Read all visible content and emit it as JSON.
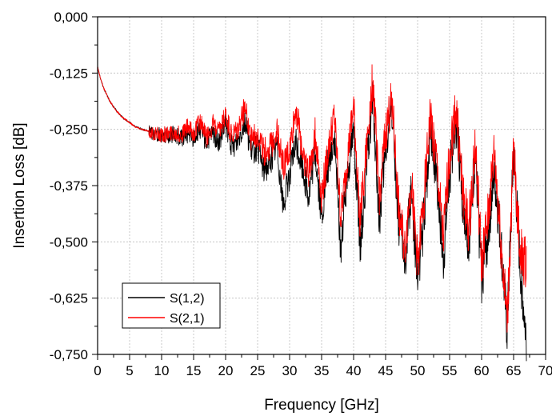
{
  "chart_data": {
    "type": "line",
    "title": "",
    "xlabel": "Frequency [GHz]",
    "ylabel": "Insertion Loss [dB]",
    "xlim": [
      0,
      70
    ],
    "ylim": [
      -0.75,
      0.0
    ],
    "x_ticks": [
      0,
      5,
      10,
      15,
      20,
      25,
      30,
      35,
      40,
      45,
      50,
      55,
      60,
      65,
      70
    ],
    "y_ticks": [
      0.0,
      -0.125,
      -0.25,
      -0.375,
      -0.5,
      -0.625,
      -0.75
    ],
    "x_tick_labels": [
      "0",
      "5",
      "10",
      "15",
      "20",
      "25",
      "30",
      "35",
      "40",
      "45",
      "50",
      "55",
      "60",
      "65",
      "70"
    ],
    "y_tick_labels": [
      "0,000",
      "-0,125",
      "-0,250",
      "-0,375",
      "-0,500",
      "-0,625",
      "-0,750"
    ],
    "grid": true,
    "legend_placement": "bottom-left",
    "series": [
      {
        "name": "S(1,2)",
        "color": "#000000",
        "x": [
          0,
          0.5,
          1,
          1.5,
          2,
          3,
          4,
          5,
          6,
          7,
          8,
          9,
          10,
          11,
          12,
          13,
          14,
          15,
          16,
          17,
          18,
          19,
          20,
          21,
          22,
          23,
          24,
          25,
          26,
          27,
          28,
          29,
          30,
          31,
          32,
          33,
          34,
          35,
          36,
          37,
          38,
          39,
          40,
          41,
          42,
          43,
          44,
          45,
          46,
          47,
          48,
          49,
          50,
          51,
          52,
          53,
          54,
          55,
          56,
          57,
          58,
          59,
          60,
          61,
          62,
          63,
          64,
          65,
          66,
          67
        ],
        "y": [
          -0.11,
          -0.14,
          -0.16,
          -0.175,
          -0.19,
          -0.21,
          -0.225,
          -0.235,
          -0.245,
          -0.25,
          -0.255,
          -0.26,
          -0.262,
          -0.265,
          -0.26,
          -0.27,
          -0.26,
          -0.27,
          -0.25,
          -0.28,
          -0.26,
          -0.28,
          -0.24,
          -0.29,
          -0.27,
          -0.23,
          -0.3,
          -0.29,
          -0.34,
          -0.32,
          -0.28,
          -0.42,
          -0.35,
          -0.28,
          -0.33,
          -0.4,
          -0.3,
          -0.45,
          -0.33,
          -0.27,
          -0.52,
          -0.35,
          -0.25,
          -0.52,
          -0.34,
          -0.18,
          -0.46,
          -0.3,
          -0.2,
          -0.45,
          -0.55,
          -0.38,
          -0.58,
          -0.45,
          -0.25,
          -0.35,
          -0.55,
          -0.35,
          -0.22,
          -0.4,
          -0.5,
          -0.3,
          -0.58,
          -0.48,
          -0.35,
          -0.5,
          -0.7,
          -0.3,
          -0.55,
          -0.72
        ]
      },
      {
        "name": "S(2,1)",
        "color": "#ff0000",
        "x": [
          0,
          0.5,
          1,
          1.5,
          2,
          3,
          4,
          5,
          6,
          7,
          8,
          9,
          10,
          11,
          12,
          13,
          14,
          15,
          16,
          17,
          18,
          19,
          20,
          21,
          22,
          23,
          24,
          25,
          26,
          27,
          28,
          29,
          30,
          31,
          32,
          33,
          34,
          35,
          36,
          37,
          38,
          39,
          40,
          41,
          42,
          43,
          44,
          45,
          46,
          47,
          48,
          49,
          50,
          51,
          52,
          53,
          54,
          55,
          56,
          57,
          58,
          59,
          60,
          61,
          62,
          63,
          64,
          65,
          66,
          67
        ],
        "y": [
          -0.11,
          -0.14,
          -0.16,
          -0.175,
          -0.19,
          -0.21,
          -0.225,
          -0.235,
          -0.245,
          -0.25,
          -0.255,
          -0.26,
          -0.262,
          -0.26,
          -0.255,
          -0.265,
          -0.245,
          -0.26,
          -0.23,
          -0.27,
          -0.24,
          -0.26,
          -0.22,
          -0.27,
          -0.25,
          -0.2,
          -0.27,
          -0.26,
          -0.3,
          -0.29,
          -0.25,
          -0.33,
          -0.3,
          -0.2,
          -0.3,
          -0.35,
          -0.26,
          -0.4,
          -0.3,
          -0.22,
          -0.45,
          -0.32,
          -0.2,
          -0.45,
          -0.3,
          -0.13,
          -0.4,
          -0.26,
          -0.18,
          -0.42,
          -0.52,
          -0.36,
          -0.55,
          -0.4,
          -0.22,
          -0.33,
          -0.5,
          -0.3,
          -0.2,
          -0.38,
          -0.48,
          -0.28,
          -0.55,
          -0.45,
          -0.3,
          -0.5,
          -0.68,
          -0.3,
          -0.52,
          -0.55
        ]
      }
    ]
  }
}
